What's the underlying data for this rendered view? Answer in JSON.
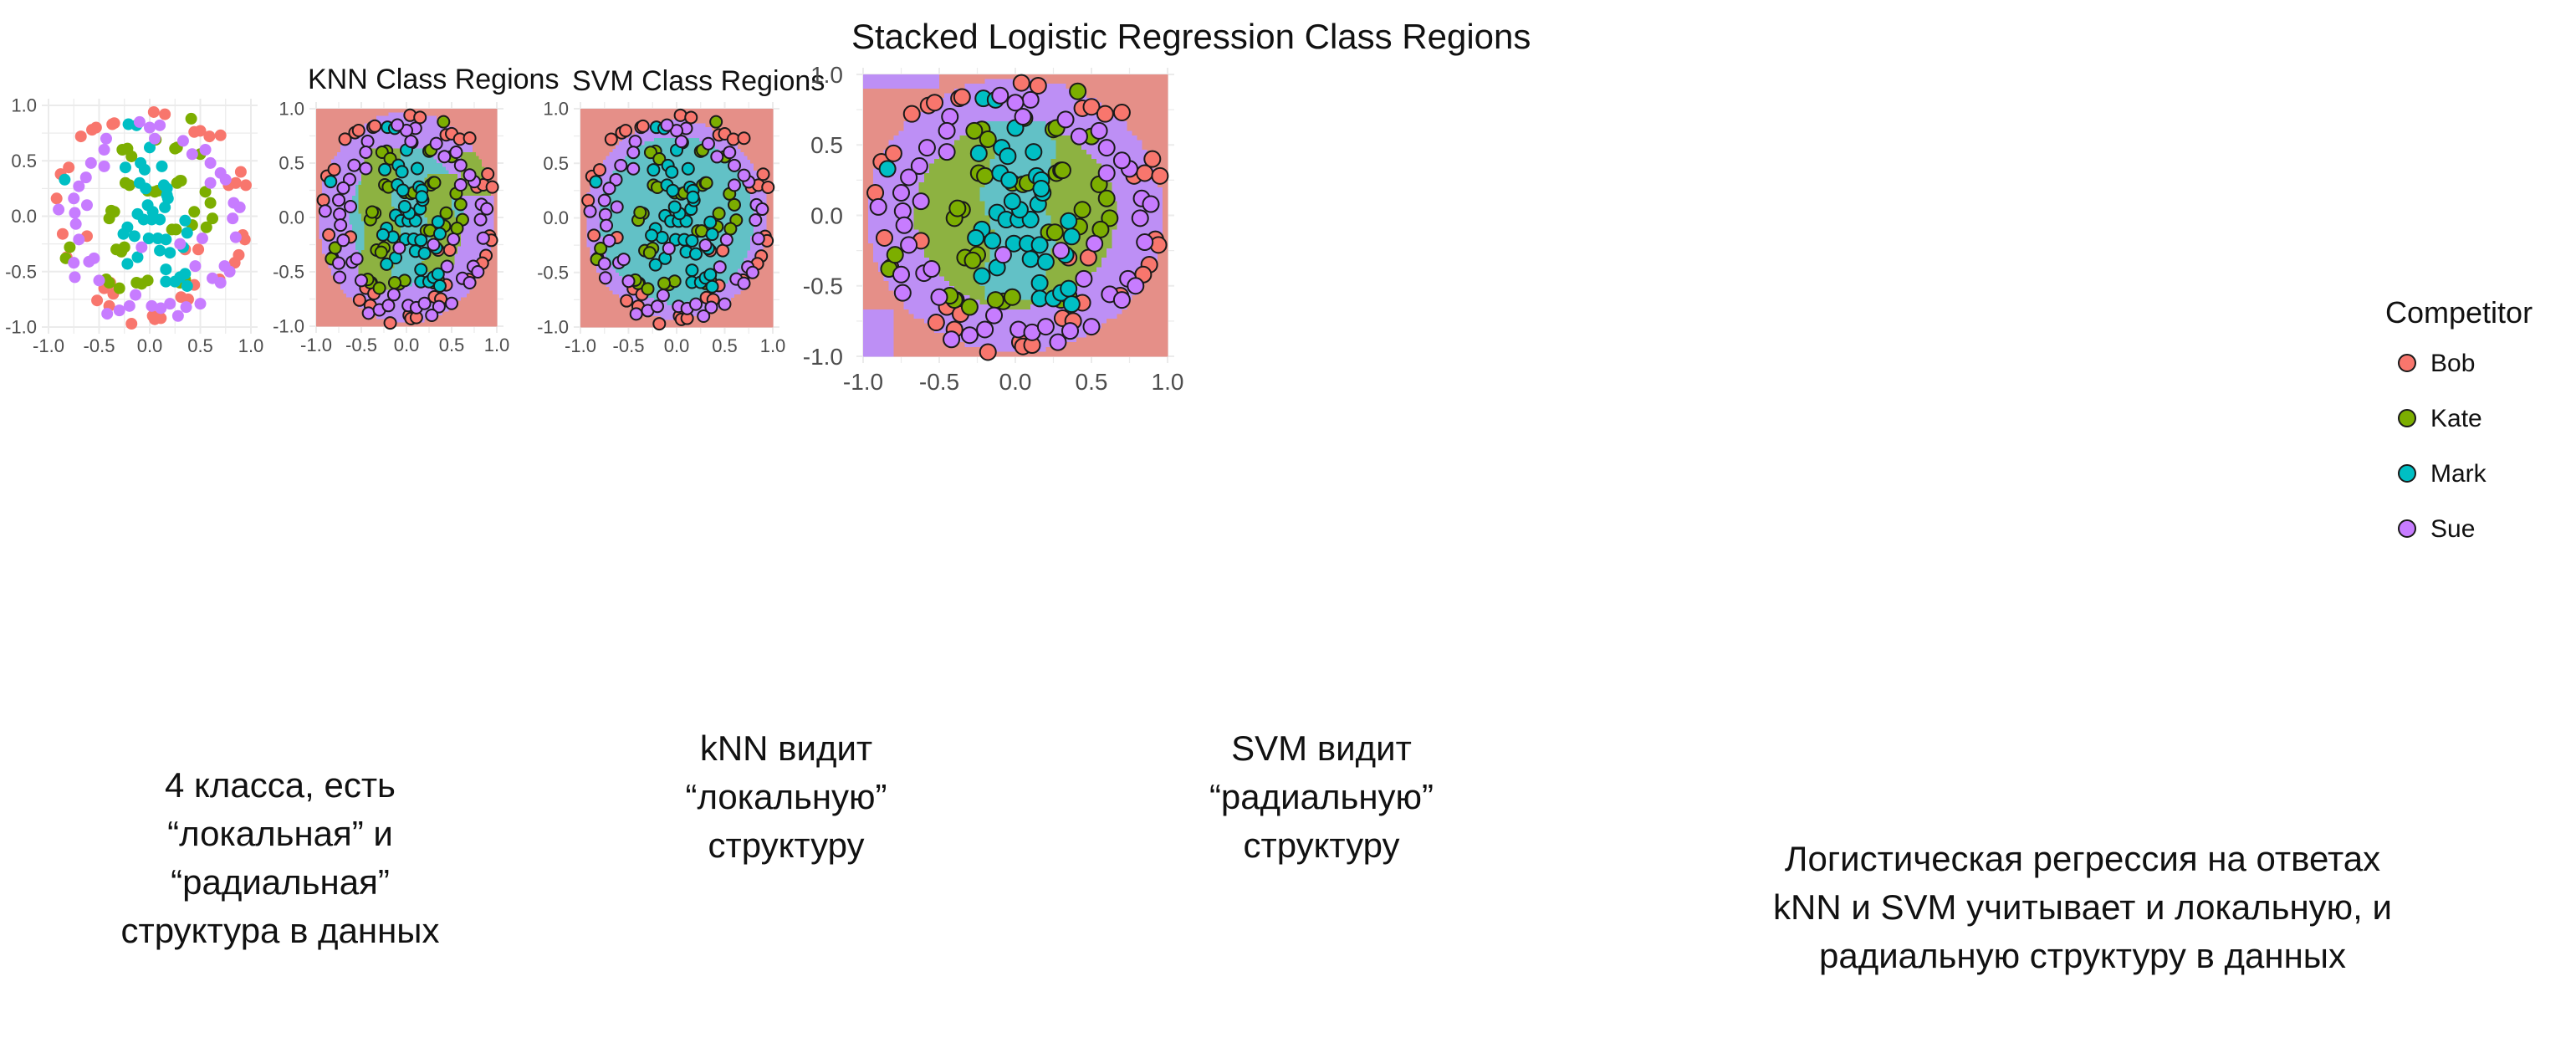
{
  "colors": {
    "Bob": "#f8766d",
    "Kate": "#7cae00",
    "Mark": "#00bfc4",
    "Sue": "#c77cff",
    "region_Bob": "#e58f88",
    "region_Kate": "#8db241",
    "region_Mark": "#62c1c6",
    "region_Sue": "#bd8ff5",
    "grid": "#ebebeb",
    "axis_text": "#4d4d4d"
  },
  "captions": {
    "scatter": "4 класса, есть\n“локальная” и\n“радиальная”\nструктура в данных",
    "knn": "kNN видит\n“локальную”\nструктуру",
    "svm": "SVM видит\n“радиальную”\nструктуру",
    "stacked": "Логистическая регрессия на ответах\nkNN и SVM учитывает и локальную, и\nрадиальную структуру в данных"
  },
  "legend": {
    "title": "Competitor",
    "items": [
      "Bob",
      "Kate",
      "Mark",
      "Sue"
    ]
  },
  "chart_data": [
    {
      "type": "scatter",
      "title": "",
      "xlabel": "",
      "ylabel": "",
      "xlim": [
        -1.0,
        1.0
      ],
      "ylim": [
        -1.0,
        1.0
      ],
      "xticks": [
        "-1.0",
        "-0.5",
        "0.0",
        "0.5",
        "1.0"
      ],
      "yticks": [
        "-1.0",
        "-0.5",
        "0.0",
        "0.5",
        "1.0"
      ],
      "grid": true,
      "legend": "none",
      "region_model": "none",
      "series_ref": "points"
    },
    {
      "type": "scatter",
      "title": "KNN Class Regions",
      "xlabel": "",
      "ylabel": "",
      "xlim": [
        -1.0,
        1.0
      ],
      "ylim": [
        -1.0,
        1.0
      ],
      "xticks": [
        "-1.0",
        "-0.5",
        "0.0",
        "0.5",
        "1.0"
      ],
      "yticks": [
        "-1.0",
        "-0.5",
        "0.0",
        "0.5",
        "1.0"
      ],
      "grid": true,
      "legend": "none",
      "region_model": "knn",
      "series_ref": "points"
    },
    {
      "type": "scatter",
      "title": "SVM Class Regions",
      "xlabel": "",
      "ylabel": "",
      "xlim": [
        -1.0,
        1.0
      ],
      "ylim": [
        -1.0,
        1.0
      ],
      "xticks": [
        "-1.0",
        "-0.5",
        "0.0",
        "0.5",
        "1.0"
      ],
      "yticks": [
        "-1.0",
        "-0.5",
        "0.0",
        "0.5",
        "1.0"
      ],
      "grid": true,
      "legend": "none",
      "region_model": "svm",
      "series_ref": "points"
    },
    {
      "type": "scatter",
      "title": "Stacked Logistic Regression Class Regions",
      "xlabel": "",
      "ylabel": "",
      "xlim": [
        -1.0,
        1.0
      ],
      "ylim": [
        -1.0,
        1.0
      ],
      "xticks": [
        "-1.0",
        "-0.5",
        "0.0",
        "0.5",
        "1.0"
      ],
      "yticks": [
        "-1.0",
        "-0.5",
        "0.0",
        "0.5",
        "1.0"
      ],
      "grid": true,
      "legend": "right",
      "region_model": "stacked",
      "series_ref": "points"
    }
  ],
  "points": [
    {
      "name": "Bob",
      "xy": [
        [
          -0.88,
          0.38
        ],
        [
          -0.92,
          0.16
        ],
        [
          -0.86,
          -0.16
        ],
        [
          -0.82,
          -0.37
        ],
        [
          -0.8,
          0.44
        ],
        [
          -0.68,
          0.72
        ],
        [
          -0.57,
          0.78
        ],
        [
          -0.53,
          0.8
        ],
        [
          -0.37,
          0.83
        ],
        [
          -0.35,
          0.84
        ],
        [
          0.04,
          0.94
        ],
        [
          0.15,
          0.92
        ],
        [
          0.44,
          0.76
        ],
        [
          0.5,
          0.77
        ],
        [
          0.59,
          0.72
        ],
        [
          0.7,
          0.73
        ],
        [
          0.78,
          0.28
        ],
        [
          0.85,
          0.3
        ],
        [
          0.9,
          0.4
        ],
        [
          0.95,
          0.28
        ],
        [
          0.92,
          -0.17
        ],
        [
          0.94,
          -0.21
        ],
        [
          0.88,
          -0.35
        ],
        [
          0.84,
          -0.42
        ],
        [
          0.69,
          -0.57
        ],
        [
          0.35,
          -0.3
        ],
        [
          -0.45,
          -0.65
        ],
        [
          -0.52,
          -0.76
        ],
        [
          -0.4,
          -0.81
        ],
        [
          -0.18,
          -0.97
        ],
        [
          0.03,
          -0.9
        ],
        [
          0.05,
          -0.93
        ],
        [
          0.11,
          -0.92
        ],
        [
          0.31,
          -0.73
        ],
        [
          0.38,
          -0.75
        ],
        [
          0.44,
          -0.62
        ],
        [
          -0.39,
          -0.6
        ],
        [
          -0.62,
          -0.18
        ],
        [
          0.48,
          -0.3
        ],
        [
          -0.36,
          -0.7
        ]
      ]
    },
    {
      "name": "Kate",
      "xy": [
        [
          -0.83,
          -0.38
        ],
        [
          -0.79,
          -0.28
        ],
        [
          -0.22,
          0.61
        ],
        [
          -0.27,
          0.6
        ],
        [
          -0.18,
          0.54
        ],
        [
          -0.02,
          0.23
        ],
        [
          0.05,
          0.22
        ],
        [
          0.08,
          0.23
        ],
        [
          -0.35,
          0.04
        ],
        [
          -0.4,
          -0.02
        ],
        [
          -0.38,
          0.05
        ],
        [
          -0.33,
          -0.3
        ],
        [
          -0.25,
          -0.28
        ],
        [
          -0.28,
          -0.32
        ],
        [
          0.22,
          -0.12
        ],
        [
          0.26,
          -0.12
        ],
        [
          0.27,
          0.3
        ],
        [
          0.3,
          0.32
        ],
        [
          0.31,
          0.32
        ],
        [
          0.25,
          0.61
        ],
        [
          0.27,
          0.62
        ],
        [
          0.41,
          0.88
        ],
        [
          0.06,
          0.69
        ],
        [
          -0.08,
          -0.61
        ],
        [
          -0.4,
          -0.6
        ],
        [
          -0.43,
          -0.57
        ],
        [
          -0.3,
          -0.65
        ],
        [
          0.3,
          -0.6
        ],
        [
          0.35,
          -0.57
        ],
        [
          -0.02,
          -0.58
        ],
        [
          -0.13,
          -0.6
        ],
        [
          0.55,
          0.22
        ],
        [
          0.6,
          0.12
        ],
        [
          0.62,
          -0.02
        ],
        [
          0.56,
          -0.1
        ],
        [
          0.5,
          0.56
        ],
        [
          -0.24,
          0.3
        ],
        [
          -0.2,
          0.28
        ],
        [
          0.44,
          0.04
        ],
        [
          0.42,
          -0.08
        ]
      ]
    },
    {
      "name": "Mark",
      "xy": [
        [
          -0.84,
          0.33
        ],
        [
          -0.21,
          0.83
        ],
        [
          -0.13,
          0.82
        ],
        [
          0.0,
          0.62
        ],
        [
          -0.09,
          0.48
        ],
        [
          -0.24,
          0.44
        ],
        [
          -0.05,
          0.42
        ],
        [
          -0.1,
          0.3
        ],
        [
          -0.04,
          0.25
        ],
        [
          0.14,
          0.28
        ],
        [
          0.17,
          0.25
        ],
        [
          0.15,
          0.08
        ],
        [
          0.18,
          0.16
        ],
        [
          0.17,
          0.19
        ],
        [
          -0.12,
          0.02
        ],
        [
          -0.06,
          -0.03
        ],
        [
          0.02,
          -0.03
        ],
        [
          0.1,
          -0.03
        ],
        [
          0.03,
          0.04
        ],
        [
          -0.22,
          -0.1
        ],
        [
          -0.15,
          -0.18
        ],
        [
          -0.12,
          -0.37
        ],
        [
          -0.01,
          -0.2
        ],
        [
          0.08,
          -0.2
        ],
        [
          0.1,
          -0.31
        ],
        [
          0.16,
          -0.21
        ],
        [
          0.2,
          -0.33
        ],
        [
          0.16,
          -0.48
        ],
        [
          0.16,
          -0.59
        ],
        [
          0.25,
          -0.59
        ],
        [
          0.3,
          -0.55
        ],
        [
          -0.22,
          -0.43
        ],
        [
          0.35,
          -0.52
        ],
        [
          0.35,
          -0.04
        ],
        [
          0.37,
          -0.15
        ],
        [
          0.33,
          -0.28
        ],
        [
          0.37,
          -0.63
        ],
        [
          -0.26,
          -0.16
        ],
        [
          -0.02,
          0.1
        ],
        [
          0.12,
          0.45
        ]
      ]
    },
    {
      "name": "Sue",
      "xy": [
        [
          -0.9,
          0.06
        ],
        [
          -0.75,
          0.16
        ],
        [
          -0.74,
          0.03
        ],
        [
          -0.73,
          -0.07
        ],
        [
          -0.7,
          -0.21
        ],
        [
          -0.75,
          -0.42
        ],
        [
          -0.74,
          -0.55
        ],
        [
          -0.6,
          -0.41
        ],
        [
          -0.5,
          -0.58
        ],
        [
          -0.42,
          -0.88
        ],
        [
          -0.3,
          -0.85
        ],
        [
          -0.2,
          -0.81
        ],
        [
          -0.14,
          -0.71
        ],
        [
          0.02,
          -0.81
        ],
        [
          0.11,
          -0.83
        ],
        [
          0.2,
          -0.79
        ],
        [
          0.36,
          -0.82
        ],
        [
          0.5,
          -0.79
        ],
        [
          0.28,
          -0.9
        ],
        [
          0.62,
          -0.56
        ],
        [
          0.7,
          -0.6
        ],
        [
          0.74,
          -0.45
        ],
        [
          0.79,
          -0.5
        ],
        [
          0.85,
          -0.19
        ],
        [
          0.82,
          -0.02
        ],
        [
          0.83,
          0.12
        ],
        [
          0.89,
          0.08
        ],
        [
          0.75,
          0.33
        ],
        [
          0.7,
          0.39
        ],
        [
          0.6,
          0.48
        ],
        [
          0.55,
          0.6
        ],
        [
          0.42,
          0.56
        ],
        [
          0.33,
          0.68
        ],
        [
          0.1,
          0.82
        ],
        [
          0.0,
          0.8
        ],
        [
          -0.1,
          0.85
        ],
        [
          -0.43,
          0.7
        ],
        [
          -0.45,
          0.6
        ],
        [
          -0.58,
          0.48
        ],
        [
          -0.63,
          0.35
        ],
        [
          -0.7,
          0.27
        ],
        [
          -0.08,
          -0.28
        ],
        [
          0.3,
          -0.25
        ],
        [
          0.45,
          -0.45
        ],
        [
          -0.55,
          -0.38
        ],
        [
          -0.45,
          0.45
        ],
        [
          0.05,
          0.7
        ],
        [
          -0.62,
          0.1
        ],
        [
          0.6,
          0.3
        ],
        [
          0.52,
          -0.2
        ]
      ]
    }
  ]
}
